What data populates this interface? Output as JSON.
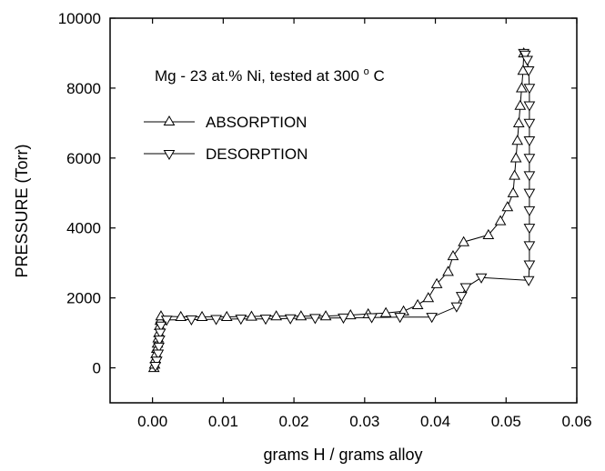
{
  "chart_data": {
    "type": "scatter",
    "annotation": {
      "prefix": "Mg - 23 at.% Ni,  tested at 300",
      "degree": "o",
      "suffix": " C"
    },
    "xlabel": "grams H / grams alloy",
    "ylabel": "PRESSURE (Torr)",
    "xlim": [
      -0.006,
      0.06
    ],
    "ylim": [
      -1000,
      10000
    ],
    "x_ticks": [
      0.0,
      0.01,
      0.02,
      0.03,
      0.04,
      0.05,
      0.06
    ],
    "x_tick_labels": [
      "0.00",
      "0.01",
      "0.02",
      "0.03",
      "0.04",
      "0.05",
      "0.06"
    ],
    "y_ticks": [
      0,
      2000,
      4000,
      6000,
      8000,
      10000
    ],
    "y_tick_labels": [
      "0",
      "2000",
      "4000",
      "6000",
      "8000",
      "10000"
    ],
    "grid": false,
    "legend_position": "upper-left",
    "series": [
      {
        "name": "ABSORPTION",
        "marker": "triangle-up",
        "points": [
          [
            0.0002,
            0
          ],
          [
            0.0003,
            100
          ],
          [
            0.0004,
            250
          ],
          [
            0.0005,
            400
          ],
          [
            0.0006,
            550
          ],
          [
            0.0007,
            700
          ],
          [
            0.0008,
            850
          ],
          [
            0.0009,
            1000
          ],
          [
            0.001,
            1200
          ],
          [
            0.0011,
            1350
          ],
          [
            0.0012,
            1480
          ],
          [
            0.004,
            1460
          ],
          [
            0.007,
            1460
          ],
          [
            0.0105,
            1460
          ],
          [
            0.014,
            1470
          ],
          [
            0.0175,
            1480
          ],
          [
            0.021,
            1480
          ],
          [
            0.0245,
            1480
          ],
          [
            0.028,
            1510
          ],
          [
            0.0305,
            1540
          ],
          [
            0.033,
            1570
          ],
          [
            0.0355,
            1620
          ],
          [
            0.0375,
            1800
          ],
          [
            0.039,
            2000
          ],
          [
            0.0402,
            2400
          ],
          [
            0.0418,
            2750
          ],
          [
            0.0425,
            3200
          ],
          [
            0.044,
            3600
          ],
          [
            0.0475,
            3800
          ],
          [
            0.0492,
            4200
          ],
          [
            0.0502,
            4600
          ],
          [
            0.051,
            5000
          ],
          [
            0.0512,
            5500
          ],
          [
            0.0514,
            6000
          ],
          [
            0.0516,
            6500
          ],
          [
            0.0518,
            7000
          ],
          [
            0.052,
            7500
          ],
          [
            0.0522,
            8000
          ],
          [
            0.0524,
            8500
          ],
          [
            0.0525,
            9000
          ]
        ]
      },
      {
        "name": "DESORPTION",
        "marker": "triangle-down",
        "points": [
          [
            0.0525,
            9000
          ],
          [
            0.0527,
            8950
          ],
          [
            0.053,
            8800
          ],
          [
            0.0532,
            8500
          ],
          [
            0.0533,
            8000
          ],
          [
            0.0533,
            7500
          ],
          [
            0.0533,
            7000
          ],
          [
            0.0533,
            6500
          ],
          [
            0.0533,
            6000
          ],
          [
            0.0533,
            5500
          ],
          [
            0.0533,
            5000
          ],
          [
            0.0533,
            4500
          ],
          [
            0.0533,
            4000
          ],
          [
            0.0533,
            3500
          ],
          [
            0.0533,
            2950
          ],
          [
            0.0532,
            2500
          ],
          [
            0.0465,
            2580
          ],
          [
            0.0443,
            2300
          ],
          [
            0.0437,
            2050
          ],
          [
            0.043,
            1750
          ],
          [
            0.0395,
            1450
          ],
          [
            0.035,
            1450
          ],
          [
            0.031,
            1440
          ],
          [
            0.027,
            1430
          ],
          [
            0.023,
            1420
          ],
          [
            0.0195,
            1410
          ],
          [
            0.016,
            1400
          ],
          [
            0.0125,
            1400
          ],
          [
            0.009,
            1390
          ],
          [
            0.0055,
            1380
          ],
          [
            0.002,
            1370
          ],
          [
            0.0012,
            1200
          ],
          [
            0.0011,
            1000
          ],
          [
            0.001,
            800
          ],
          [
            0.0009,
            600
          ],
          [
            0.0008,
            400
          ],
          [
            0.0006,
            200
          ],
          [
            0.0004,
            50
          ]
        ]
      }
    ]
  }
}
